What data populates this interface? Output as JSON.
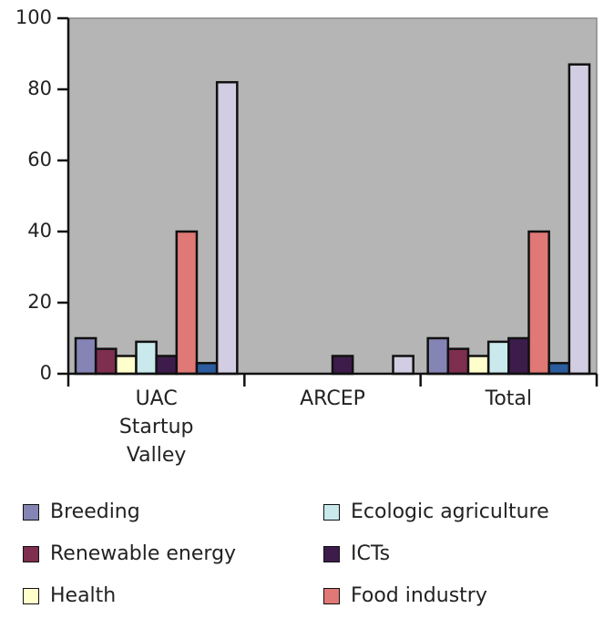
{
  "chart_data": {
    "type": "bar",
    "categories": [
      "UAC Startup Valley",
      "ARCEP",
      "Total"
    ],
    "series": [
      {
        "name": "Breeding",
        "color": "#8585b5",
        "values": [
          10,
          0,
          10
        ]
      },
      {
        "name": "Renewable energy",
        "color": "#7e2e4e",
        "values": [
          7,
          0,
          7
        ]
      },
      {
        "name": "Health",
        "color": "#ffffcc",
        "values": [
          5,
          0,
          5
        ]
      },
      {
        "name": "Ecologic agriculture",
        "color": "#c9e9ec",
        "values": [
          9,
          0,
          9
        ]
      },
      {
        "name": "ICTs",
        "color": "#3d1c4c",
        "values": [
          5,
          5,
          10
        ]
      },
      {
        "name": "Food industry",
        "color": "#e07876",
        "values": [
          40,
          0,
          40
        ]
      },
      {
        "color": "#2b5c9e",
        "values": [
          3,
          0,
          3
        ]
      },
      {
        "color": "#d2cde2",
        "values": [
          82,
          5,
          87
        ]
      }
    ],
    "ylim": [
      0,
      100
    ],
    "yticks": [
      0,
      20,
      40,
      60,
      80,
      100
    ]
  }
}
